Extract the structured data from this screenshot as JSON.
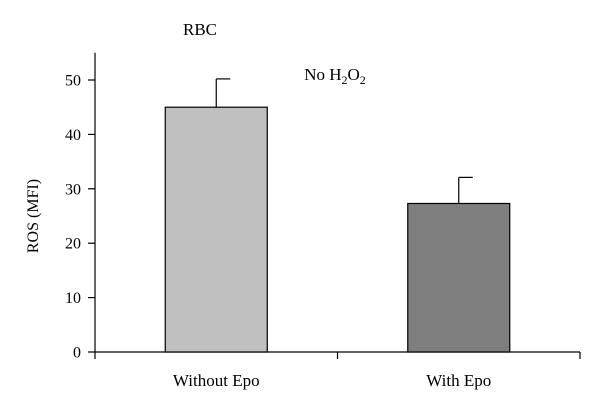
{
  "chart_data": {
    "type": "bar",
    "title": "",
    "xlabel": "",
    "ylabel": "ROS (MFI)",
    "ylim": [
      0,
      55
    ],
    "yticks": [
      0,
      10,
      20,
      30,
      40,
      50
    ],
    "categories": [
      "Without Epo",
      "With Epo"
    ],
    "values": [
      45,
      27.3
    ],
    "errors": [
      5.2,
      4.8
    ],
    "bar_colors": [
      "#c0c0c0",
      "#7f7f7f"
    ],
    "annotations": {
      "panel_label": "RBC",
      "condition": "No H2O2"
    },
    "grid": false,
    "legend": "none"
  }
}
